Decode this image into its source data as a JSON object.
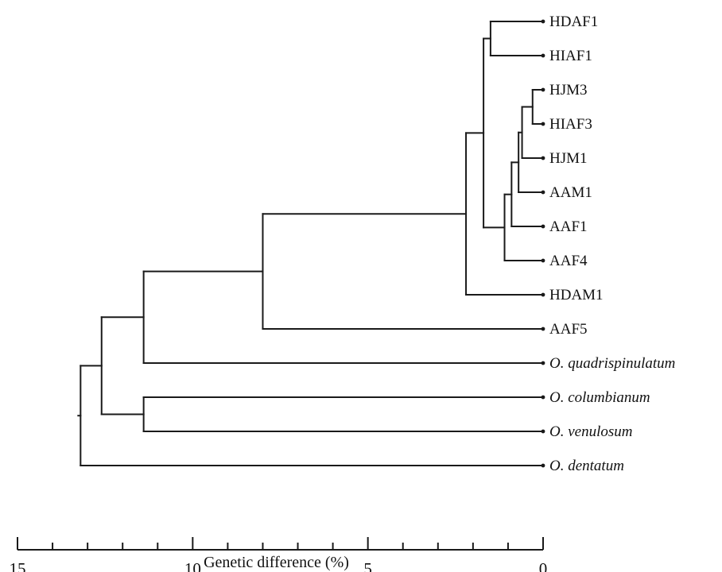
{
  "tree": {
    "leaves": [
      {
        "id": "HDAF1",
        "label": "HDAF1",
        "italic": false
      },
      {
        "id": "HIAF1",
        "label": "HIAF1",
        "italic": false
      },
      {
        "id": "HJM3",
        "label": "HJM3",
        "italic": false
      },
      {
        "id": "HIAF3",
        "label": "HIAF3",
        "italic": false
      },
      {
        "id": "HJM1",
        "label": "HJM1",
        "italic": false
      },
      {
        "id": "AAM1",
        "label": "AAM1",
        "italic": false
      },
      {
        "id": "AAF1",
        "label": "AAF1",
        "italic": false
      },
      {
        "id": "AAF4",
        "label": "AAF4",
        "italic": false
      },
      {
        "id": "HDAM1",
        "label": "HDAM1",
        "italic": false
      },
      {
        "id": "AAF5",
        "label": "AAF5",
        "italic": false
      },
      {
        "id": "Oquad",
        "label": "O. quadrispinulatum",
        "italic": true
      },
      {
        "id": "Ocol",
        "label": "O. columbianum",
        "italic": true
      },
      {
        "id": "Oven",
        "label": "O. venulosum",
        "italic": true
      },
      {
        "id": "Oden",
        "label": "O. dentatum",
        "italic": true
      }
    ],
    "nodes": [
      {
        "id": "n_hdaf_hiaf",
        "height": 1.5,
        "children": [
          "HDAF1",
          "HIAF1"
        ]
      },
      {
        "id": "n_hjm3_hiaf3",
        "height": 0.3,
        "children": [
          "HJM3",
          "HIAF3"
        ]
      },
      {
        "id": "n_hjm1",
        "height": 0.6,
        "children": [
          "n_hjm3_hiaf3",
          "HJM1"
        ]
      },
      {
        "id": "n_aam1",
        "height": 0.7,
        "children": [
          "n_hjm1",
          "AAM1"
        ]
      },
      {
        "id": "n_aaf1",
        "height": 0.9,
        "children": [
          "n_aam1",
          "AAF1"
        ]
      },
      {
        "id": "n_aaf4",
        "height": 1.1,
        "children": [
          "n_aaf1",
          "AAF4"
        ]
      },
      {
        "id": "n_top",
        "height": 1.7,
        "children": [
          "n_hdaf_hiaf",
          "n_aaf4"
        ]
      },
      {
        "id": "n_hdam1",
        "height": 2.2,
        "children": [
          "n_top",
          "HDAM1"
        ]
      },
      {
        "id": "n_aaf5",
        "height": 8.0,
        "children": [
          "n_hdam1",
          "AAF5"
        ]
      },
      {
        "id": "n_quad",
        "height": 11.4,
        "children": [
          "n_aaf5",
          "Oquad"
        ]
      },
      {
        "id": "n_colven",
        "height": 11.4,
        "children": [
          "Ocol",
          "Oven"
        ]
      },
      {
        "id": "n_outer",
        "height": 12.6,
        "children": [
          "n_quad",
          "n_colven"
        ]
      },
      {
        "id": "n_root",
        "height": 13.2,
        "children": [
          "n_outer",
          "Oden"
        ]
      }
    ]
  },
  "axis": {
    "title": "Genetic difference (%)",
    "range": [
      15,
      0
    ],
    "major_ticks": [
      15,
      10,
      5,
      0
    ],
    "minor_step": 1,
    "tick_labels": [
      "15",
      "10",
      "5",
      "0"
    ]
  }
}
